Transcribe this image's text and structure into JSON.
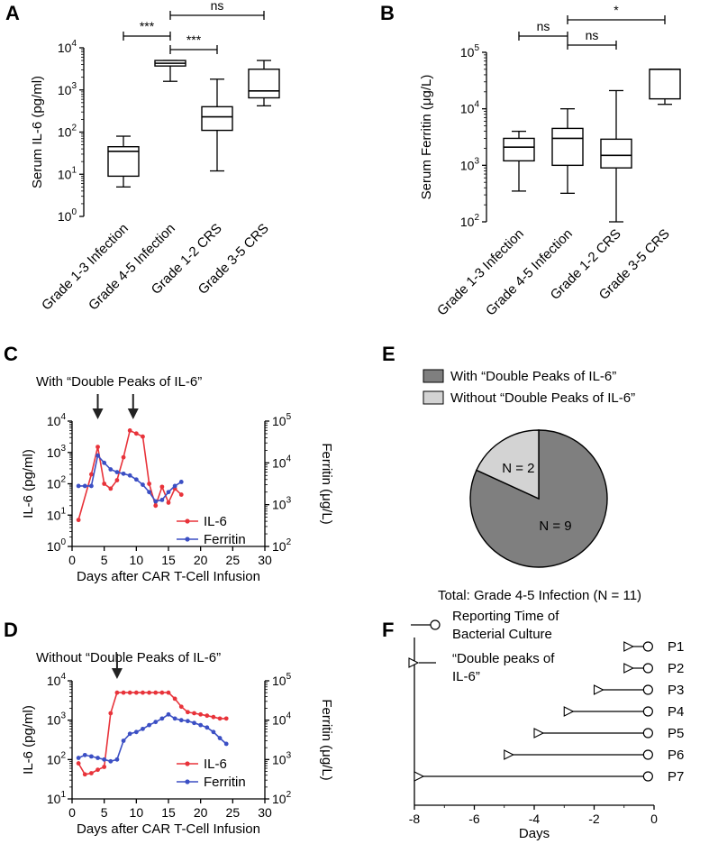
{
  "panels": {
    "A": "A",
    "B": "B",
    "C": "C",
    "D": "D",
    "E": "E",
    "F": "F"
  },
  "chart_data": [
    {
      "id": "A",
      "type": "box",
      "ylabel": "Serum IL-6 (pg/ml)",
      "yscale": "log",
      "ylim_exp": [
        0,
        4
      ],
      "yticks": [
        "10^0",
        "10^1",
        "10^2",
        "10^3",
        "10^4"
      ],
      "categories": [
        "Grade 1-3 Infection",
        "Grade 4-5 Infection",
        "Grade 1-2 CRS",
        "Grade 3-5 CRS"
      ],
      "boxes": [
        {
          "min": 5,
          "q1": 9,
          "median": 35,
          "q3": 45,
          "max": 80
        },
        {
          "min": 1600,
          "q1": 3700,
          "median": 4300,
          "q3": 5000,
          "max": 5000
        },
        {
          "min": 12,
          "q1": 110,
          "median": 230,
          "q3": 400,
          "max": 1800
        },
        {
          "min": 420,
          "q1": 650,
          "median": 950,
          "q3": 3100,
          "max": 5000
        }
      ],
      "comparisons": [
        {
          "from": 0,
          "to": 1,
          "label": "***"
        },
        {
          "from": 1,
          "to": 3,
          "label": "ns"
        },
        {
          "from": 1,
          "to": 2,
          "label": "***"
        }
      ]
    },
    {
      "id": "B",
      "type": "box",
      "ylabel": "Serum Ferritin (μg/L)",
      "yscale": "log",
      "ylim_exp": [
        2,
        5
      ],
      "yticks": [
        "10^2",
        "10^3",
        "10^4",
        "10^5"
      ],
      "categories": [
        "Grade 1-3 Infection",
        "Grade 4-5 Infection",
        "Grade 1-2 CRS",
        "Grade 3-5 CRS"
      ],
      "boxes": [
        {
          "min": 350,
          "q1": 1200,
          "median": 2100,
          "q3": 3000,
          "max": 4000
        },
        {
          "min": 320,
          "q1": 1000,
          "median": 3000,
          "q3": 4500,
          "max": 10000
        },
        {
          "min": 100,
          "q1": 900,
          "median": 1500,
          "q3": 2900,
          "max": 21000
        },
        {
          "min": 12000,
          "q1": 15000,
          "median": 50000,
          "q3": 50000,
          "max": 50000
        }
      ],
      "comparisons": [
        {
          "from": 0,
          "to": 1,
          "label": "ns"
        },
        {
          "from": 1,
          "to": 3,
          "label": "*"
        },
        {
          "from": 1,
          "to": 2,
          "label": "ns"
        }
      ]
    },
    {
      "id": "C",
      "type": "line",
      "title": "With “Double Peaks of IL-6”",
      "xlabel": "Days after CAR T-Cell Infusion",
      "ylabel": "IL-6 (pg/ml)",
      "y2label": "Ferritin (μg/L)",
      "xlim": [
        0,
        30
      ],
      "xticks": [
        "0",
        "5",
        "10",
        "15",
        "20",
        "25",
        "30"
      ],
      "yticks": [
        "10^0",
        "10^1",
        "10^2",
        "10^3",
        "10^4"
      ],
      "y2ticks": [
        "10^2",
        "10^3",
        "10^4",
        "10^5"
      ],
      "ylim_exp": [
        0,
        4
      ],
      "y2lim_exp": [
        2,
        5
      ],
      "arrows_at": [
        4,
        9.5
      ],
      "series": [
        {
          "name": "IL-6",
          "color": "#e8333a",
          "x": [
            1,
            3,
            4,
            5,
            6,
            7,
            8,
            9,
            10,
            11,
            12,
            13,
            14,
            15,
            16,
            17
          ],
          "y": [
            7,
            200,
            1500,
            100,
            70,
            130,
            700,
            5000,
            4000,
            3200,
            100,
            20,
            80,
            25,
            70,
            45
          ]
        },
        {
          "name": "Ferritin",
          "color": "#3b4fc4",
          "x": [
            1,
            2,
            3,
            4,
            5,
            6,
            7,
            8,
            9,
            10,
            11,
            12,
            13,
            14,
            15,
            16,
            17
          ],
          "y": [
            2800,
            2800,
            2800,
            15000,
            10000,
            7000,
            6000,
            5500,
            5000,
            4000,
            3000,
            2000,
            1200,
            1300,
            2000,
            2800,
            3500
          ]
        }
      ]
    },
    {
      "id": "D",
      "type": "line",
      "title": "Without “Double Peaks of IL-6”",
      "xlabel": "Days after CAR T-Cell Infusion",
      "ylabel": "IL-6 (pg/ml)",
      "y2label": "Ferritin (μg/L)",
      "xlim": [
        0,
        30
      ],
      "xticks": [
        "0",
        "5",
        "10",
        "15",
        "20",
        "25",
        "30"
      ],
      "yticks": [
        "10^1",
        "10^2",
        "10^3",
        "10^4"
      ],
      "y2ticks": [
        "10^2",
        "10^3",
        "10^4",
        "10^5"
      ],
      "ylim_exp": [
        1,
        4
      ],
      "y2lim_exp": [
        2,
        5
      ],
      "arrows_at": [
        7
      ],
      "series": [
        {
          "name": "IL-6",
          "color": "#e8333a",
          "x": [
            1,
            2,
            3,
            4,
            5,
            6,
            7,
            8,
            9,
            10,
            11,
            12,
            13,
            14,
            15,
            16,
            17,
            18,
            19,
            20,
            21,
            22,
            23,
            24
          ],
          "y": [
            80,
            42,
            45,
            55,
            65,
            1500,
            5000,
            5000,
            5000,
            5000,
            5000,
            5000,
            5000,
            5000,
            5000,
            3500,
            2200,
            1600,
            1500,
            1400,
            1300,
            1200,
            1100,
            1100
          ]
        },
        {
          "name": "Ferritin",
          "color": "#3b4fc4",
          "x": [
            1,
            2,
            3,
            4,
            5,
            6,
            7,
            8,
            9,
            10,
            11,
            12,
            13,
            14,
            15,
            16,
            17,
            18,
            19,
            20,
            21,
            22,
            23,
            24
          ],
          "y": [
            1100,
            1300,
            1200,
            1100,
            1000,
            900,
            1000,
            3000,
            4500,
            5000,
            6000,
            7500,
            9000,
            11000,
            14000,
            11000,
            10000,
            9500,
            8500,
            7500,
            6500,
            5000,
            3500,
            2500
          ]
        }
      ]
    },
    {
      "id": "E",
      "type": "pie",
      "legend": [
        "With “Double Peaks of IL-6”",
        "Without “Double Peaks of IL-6”"
      ],
      "colors": [
        "#7f7f7f",
        "#d3d3d3"
      ],
      "values": [
        9,
        2
      ],
      "labels": [
        "N = 9",
        "N = 2"
      ],
      "caption": "Total: Grade 4-5 Infection (N = 11)"
    },
    {
      "id": "F",
      "type": "interval",
      "xlabel": "Days",
      "xlim": [
        -8,
        0
      ],
      "xticks": [
        "-8",
        "-6",
        "-4",
        "-2",
        "0"
      ],
      "legend": [
        "Reporting Time of Bacterial Culture",
        "“Double peaks of IL-6”"
      ],
      "rows": [
        {
          "label": "P1",
          "start": -1.0,
          "end": -0.2
        },
        {
          "label": "P2",
          "start": -1.0,
          "end": -0.2
        },
        {
          "label": "P3",
          "start": -2.0,
          "end": -0.2
        },
        {
          "label": "P4",
          "start": -3.0,
          "end": -0.2
        },
        {
          "label": "P5",
          "start": -4.0,
          "end": -0.2
        },
        {
          "label": "P6",
          "start": -5.0,
          "end": -0.2
        },
        {
          "label": "P7",
          "start": -8.0,
          "end": -0.2
        }
      ]
    }
  ]
}
